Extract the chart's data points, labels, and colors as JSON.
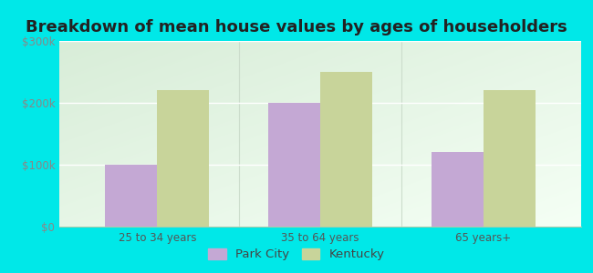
{
  "title": "Breakdown of mean house values by ages of householders",
  "categories": [
    "25 to 34 years",
    "35 to 64 years",
    "65 years+"
  ],
  "park_city_values": [
    100000,
    200000,
    120000
  ],
  "kentucky_values": [
    220000,
    250000,
    220000
  ],
  "ylim": [
    0,
    300000
  ],
  "ytick_labels": [
    "$0",
    "$100k",
    "$200k",
    "$300k"
  ],
  "ytick_values": [
    0,
    100000,
    200000,
    300000
  ],
  "bar_color_park_city": "#c4a8d4",
  "bar_color_kentucky": "#c8d49a",
  "outer_bg_color": "#00e8e8",
  "plot_bg_color_tl": "#d8edd8",
  "plot_bg_color_br": "#f5fff5",
  "legend_park_city": "Park City",
  "legend_kentucky": "Kentucky",
  "bar_width": 0.32,
  "title_fontsize": 13,
  "tick_fontsize": 8.5,
  "legend_fontsize": 9.5
}
